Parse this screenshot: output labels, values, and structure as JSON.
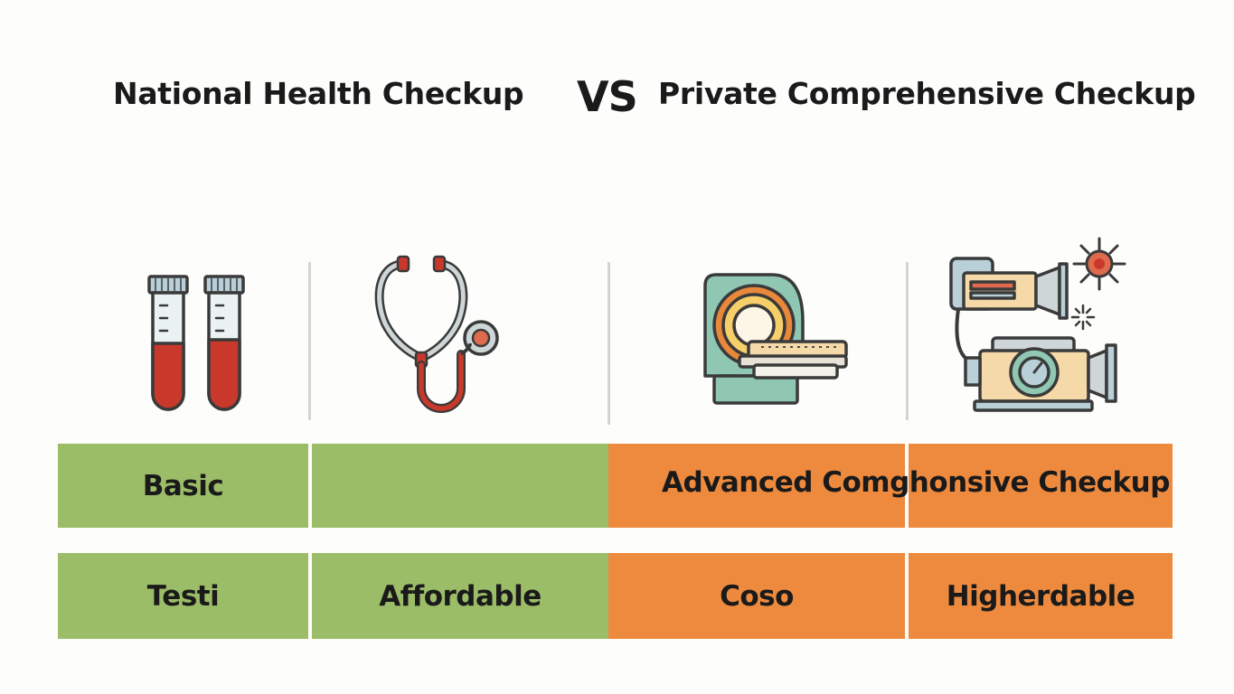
{
  "header": {
    "left_title": "National Health Checkup",
    "vs": "VS",
    "right_title": "Private Comprehensive Checkup"
  },
  "icons": [
    {
      "name": "test-tubes-icon"
    },
    {
      "name": "stethoscope-icon"
    },
    {
      "name": "mri-scanner-icon"
    },
    {
      "name": "medical-equipment-icon"
    }
  ],
  "row1": {
    "left_label": "Basic",
    "left_second": "",
    "right_label": "Advanced Comghonsive Checkup"
  },
  "row2": {
    "cells": [
      "Testi",
      "Affordable",
      "Coso",
      "Higherdable"
    ]
  },
  "colors": {
    "national": "#9cbd68",
    "private": "#ee8a3e",
    "blood": "#c9392b",
    "outline": "#3a3a3a"
  }
}
